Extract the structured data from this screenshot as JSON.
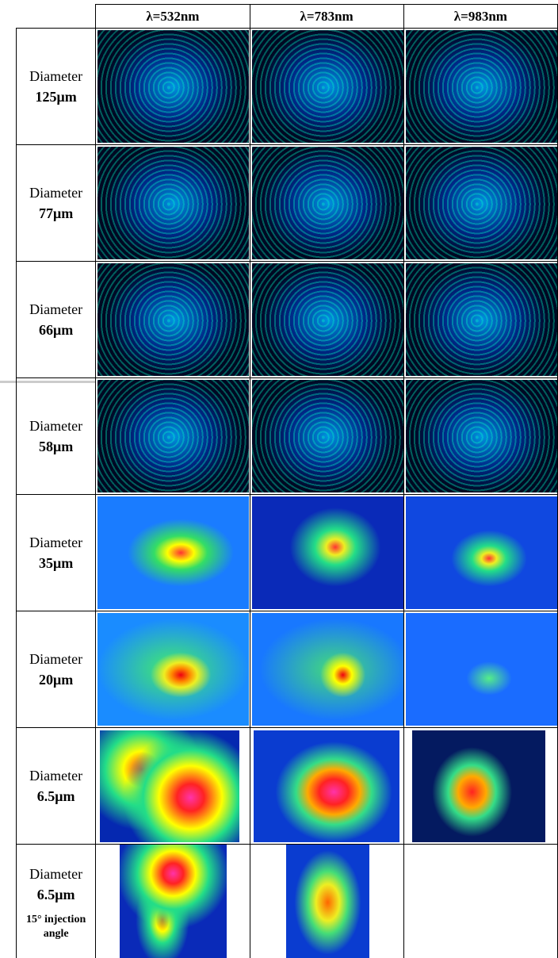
{
  "header": {
    "columns": [
      "λ=532nm",
      "λ=783nm",
      "λ=983nm"
    ]
  },
  "table": {
    "rows": [
      {
        "label": "Diameter",
        "size": "125μm"
      },
      {
        "label": "Diameter",
        "size": "77μm"
      },
      {
        "label": "Diameter",
        "size": "66μm"
      },
      {
        "label": "Diameter",
        "size": "58μm"
      },
      {
        "label": "Diameter",
        "size": "35μm"
      },
      {
        "label": "Diameter",
        "size": "20μm"
      },
      {
        "label": "Diameter",
        "size": "6.5μm"
      },
      {
        "label": "Diameter",
        "size": "6.5μm",
        "note": "15° injection angle"
      }
    ]
  }
}
